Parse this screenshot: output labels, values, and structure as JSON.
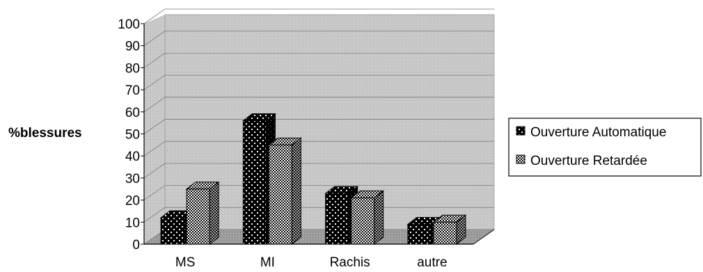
{
  "chart_data": {
    "type": "bar",
    "title": "",
    "xlabel": "",
    "ylabel": "%blessures",
    "categories": [
      "MS",
      "MI",
      "Rachis",
      "autre"
    ],
    "ylim": [
      0,
      100
    ],
    "yticks": [
      0,
      10,
      20,
      30,
      40,
      50,
      60,
      70,
      80,
      90,
      100
    ],
    "grid": true,
    "legend_position": "right",
    "series": [
      {
        "name": "Ouverture Automatique",
        "values": [
          12,
          56,
          23,
          9
        ],
        "color": "#000000",
        "pattern": "white-dots"
      },
      {
        "name": "Ouverture Retardée",
        "values": [
          25,
          45,
          21,
          10
        ],
        "color": "#ffffff",
        "pattern": "checker"
      }
    ]
  }
}
